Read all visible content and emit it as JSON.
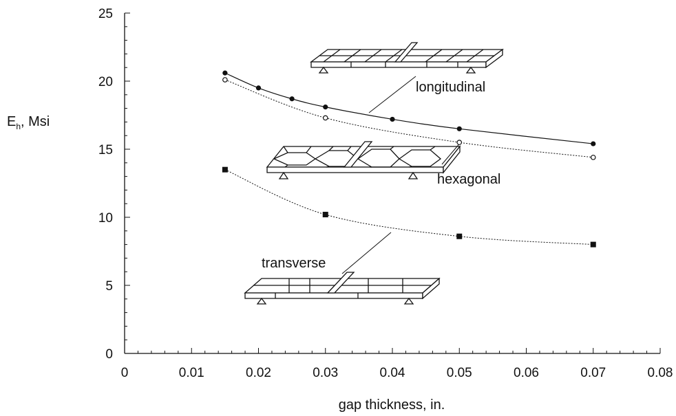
{
  "chart_data": {
    "type": "line",
    "xlabel": "gap thickness, in.",
    "ylabel": {
      "main": "E",
      "sub": "h",
      "rest": ", Msi"
    },
    "xlim": [
      0,
      0.08
    ],
    "ylim": [
      0,
      25
    ],
    "x_ticks": [
      0,
      0.01,
      0.02,
      0.03,
      0.04,
      0.05,
      0.06,
      0.07,
      0.08
    ],
    "x_tick_labels": [
      "0",
      "0.01",
      "0.02",
      "0.03",
      "0.04",
      "0.05",
      "0.06",
      "0.07",
      "0.08"
    ],
    "y_ticks": [
      0,
      5,
      10,
      15,
      20,
      25
    ],
    "y_tick_labels": [
      "0",
      "5",
      "10",
      "15",
      "20",
      "25"
    ],
    "grid": false,
    "series": [
      {
        "name": "longitudinal",
        "marker": "filled-circle",
        "line": "solid",
        "x": [
          0.015,
          0.02,
          0.025,
          0.03,
          0.04,
          0.05,
          0.07
        ],
        "y": [
          20.6,
          19.5,
          18.7,
          18.1,
          17.2,
          16.5,
          15.4
        ]
      },
      {
        "name": "hexagonal",
        "marker": "open-circle",
        "line": "dotted",
        "x": [
          0.015,
          0.03,
          0.05,
          0.07
        ],
        "y": [
          20.1,
          17.3,
          15.5,
          14.4
        ]
      },
      {
        "name": "transverse",
        "marker": "filled-square",
        "line": "dotted",
        "x": [
          0.015,
          0.03,
          0.05,
          0.07
        ],
        "y": [
          13.5,
          10.2,
          8.6,
          8.0
        ]
      }
    ],
    "annotations": [
      "longitudinal",
      "hexagonal",
      "transverse"
    ],
    "colors": {
      "ink": "#111111",
      "background": "#ffffff"
    }
  }
}
